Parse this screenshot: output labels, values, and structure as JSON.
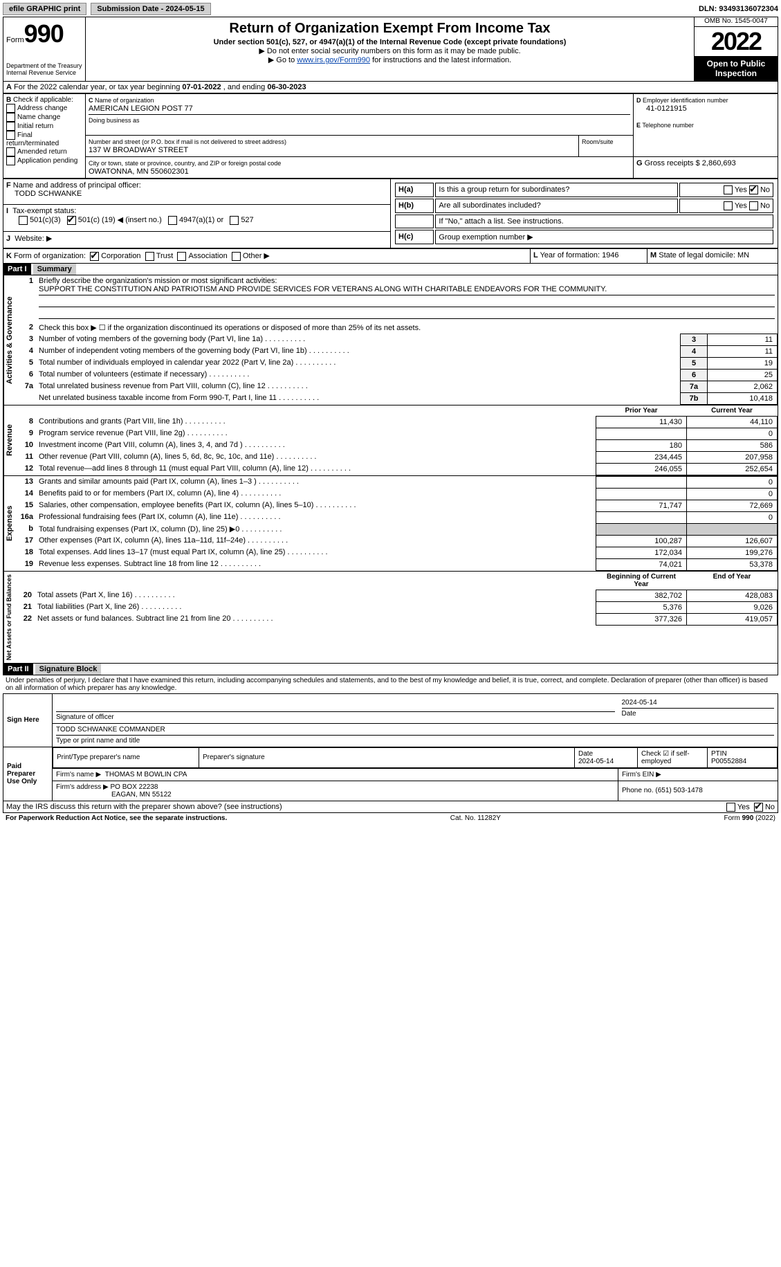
{
  "topbar": {
    "efile": "efile GRAPHIC print",
    "submission_label": "Submission Date - 2024-05-15",
    "dln_label": "DLN: 93493136072304"
  },
  "header": {
    "form_word": "Form",
    "form_num": "990",
    "dept": "Department of the Treasury",
    "irs": "Internal Revenue Service",
    "title": "Return of Organization Exempt From Income Tax",
    "subtitle": "Under section 501(c), 527, or 4947(a)(1) of the Internal Revenue Code (except private foundations)",
    "note1": "Do not enter social security numbers on this form as it may be made public.",
    "note2_pre": "Go to ",
    "note2_link": "www.irs.gov/Form990",
    "note2_post": " for instructions and the latest information.",
    "omb": "OMB No. 1545-0047",
    "year": "2022",
    "open": "Open to Public Inspection"
  },
  "periodA": {
    "text_pre": "For the 2022 calendar year, or tax year beginning ",
    "begin": "07-01-2022",
    "mid": " , and ending ",
    "end": "06-30-2023"
  },
  "boxB": {
    "label": "Check if applicable:",
    "opts": [
      "Address change",
      "Name change",
      "Initial return",
      "Final return/terminated",
      "Amended return",
      "Application pending"
    ]
  },
  "boxC": {
    "name_label": "Name of organization",
    "name": "AMERICAN LEGION POST 77",
    "dba_label": "Doing business as",
    "addr_label": "Number and street (or P.O. box if mail is not delivered to street address)",
    "room_label": "Room/suite",
    "addr": "137 W BROADWAY STREET",
    "city_label": "City or town, state or province, country, and ZIP or foreign postal code",
    "city": "OWATONNA, MN  550602301"
  },
  "boxD": {
    "label": "Employer identification number",
    "val": "41-0121915"
  },
  "boxE": {
    "label": "Telephone number",
    "val": ""
  },
  "boxG": {
    "label": "Gross receipts $",
    "val": "2,860,693"
  },
  "boxF": {
    "label": "Name and address of principal officer:",
    "name": "TODD SCHWANKE"
  },
  "boxH": {
    "a_label": "Is this a group return for subordinates?",
    "b_label": "Are all subordinates included?",
    "yes": "Yes",
    "no": "No",
    "note": "If \"No,\" attach a list. See instructions.",
    "c_label": "Group exemption number ▶"
  },
  "boxI": {
    "label": "Tax-exempt status:",
    "c3": "501(c)(3)",
    "c_pre": "501(c) (",
    "c_num": "19",
    "c_post": ") ◀ (insert no.)",
    "a4947": "4947(a)(1) or",
    "s527": "527"
  },
  "boxJ": {
    "label": "Website: ▶"
  },
  "boxK": {
    "label": "Form of organization:",
    "corp": "Corporation",
    "trust": "Trust",
    "assoc": "Association",
    "other": "Other ▶"
  },
  "boxL": {
    "label": "Year of formation:",
    "val": "1946"
  },
  "boxM": {
    "label": "State of legal domicile:",
    "val": "MN"
  },
  "part1": {
    "header": "Part I",
    "title": "Summary",
    "line1_label": "Briefly describe the organization's mission or most significant activities:",
    "line1_text": "SUPPORT THE CONSTITUTION AND PATRIOTISM AND PROVIDE SERVICES FOR VETERANS ALONG WITH CHARITABLE ENDEAVORS FOR THE COMMUNITY.",
    "line2": "Check this box ▶ ☐ if the organization discontinued its operations or disposed of more than 25% of its net assets.",
    "rows_ag": [
      {
        "n": "3",
        "t": "Number of voting members of the governing body (Part VI, line 1a)",
        "b": "3",
        "v": "11"
      },
      {
        "n": "4",
        "t": "Number of independent voting members of the governing body (Part VI, line 1b)",
        "b": "4",
        "v": "11"
      },
      {
        "n": "5",
        "t": "Total number of individuals employed in calendar year 2022 (Part V, line 2a)",
        "b": "5",
        "v": "19"
      },
      {
        "n": "6",
        "t": "Total number of volunteers (estimate if necessary)",
        "b": "6",
        "v": "25"
      },
      {
        "n": "7a",
        "t": "Total unrelated business revenue from Part VIII, column (C), line 12",
        "b": "7a",
        "v": "2,062"
      },
      {
        "n": "",
        "t": "Net unrelated business taxable income from Form 990-T, Part I, line 11",
        "b": "7b",
        "v": "10,418"
      }
    ],
    "prior_label": "Prior Year",
    "current_label": "Current Year",
    "rev": [
      {
        "n": "8",
        "t": "Contributions and grants (Part VIII, line 1h)",
        "p": "11,430",
        "c": "44,110"
      },
      {
        "n": "9",
        "t": "Program service revenue (Part VIII, line 2g)",
        "p": "",
        "c": "0"
      },
      {
        "n": "10",
        "t": "Investment income (Part VIII, column (A), lines 3, 4, and 7d )",
        "p": "180",
        "c": "586"
      },
      {
        "n": "11",
        "t": "Other revenue (Part VIII, column (A), lines 5, 6d, 8c, 9c, 10c, and 11e)",
        "p": "234,445",
        "c": "207,958"
      },
      {
        "n": "12",
        "t": "Total revenue—add lines 8 through 11 (must equal Part VIII, column (A), line 12)",
        "p": "246,055",
        "c": "252,654"
      }
    ],
    "exp": [
      {
        "n": "13",
        "t": "Grants and similar amounts paid (Part IX, column (A), lines 1–3 )",
        "p": "",
        "c": "0"
      },
      {
        "n": "14",
        "t": "Benefits paid to or for members (Part IX, column (A), line 4)",
        "p": "",
        "c": "0"
      },
      {
        "n": "15",
        "t": "Salaries, other compensation, employee benefits (Part IX, column (A), lines 5–10)",
        "p": "71,747",
        "c": "72,669"
      },
      {
        "n": "16a",
        "t": "Professional fundraising fees (Part IX, column (A), line 11e)",
        "p": "",
        "c": "0"
      },
      {
        "n": "b",
        "t": "Total fundraising expenses (Part IX, column (D), line 25) ▶0",
        "p": "__GREY__",
        "c": "__GREY__"
      },
      {
        "n": "17",
        "t": "Other expenses (Part IX, column (A), lines 11a–11d, 11f–24e)",
        "p": "100,287",
        "c": "126,607"
      },
      {
        "n": "18",
        "t": "Total expenses. Add lines 13–17 (must equal Part IX, column (A), line 25)",
        "p": "172,034",
        "c": "199,276"
      },
      {
        "n": "19",
        "t": "Revenue less expenses. Subtract line 18 from line 12",
        "p": "74,021",
        "c": "53,378"
      }
    ],
    "beg_label": "Beginning of Current Year",
    "end_label": "End of Year",
    "net": [
      {
        "n": "20",
        "t": "Total assets (Part X, line 16)",
        "p": "382,702",
        "c": "428,083"
      },
      {
        "n": "21",
        "t": "Total liabilities (Part X, line 26)",
        "p": "5,376",
        "c": "9,026"
      },
      {
        "n": "22",
        "t": "Net assets or fund balances. Subtract line 21 from line 20",
        "p": "377,326",
        "c": "419,057"
      }
    ],
    "vlabels": {
      "ag": "Activities & Governance",
      "rev": "Revenue",
      "exp": "Expenses",
      "net": "Net Assets or Fund Balances"
    }
  },
  "part2": {
    "header": "Part II",
    "title": "Signature Block",
    "penalty": "Under penalties of perjury, I declare that I have examined this return, including accompanying schedules and statements, and to the best of my knowledge and belief, it is true, correct, and complete. Declaration of preparer (other than officer) is based on all information of which preparer has any knowledge.",
    "sign_here": "Sign Here",
    "sig_officer": "Signature of officer",
    "sig_date": "2024-05-14",
    "date_label": "Date",
    "officer_name": "TODD SCHWANKE  COMMANDER",
    "officer_sub": "Type or print name and title",
    "paid": "Paid Preparer Use Only",
    "prep_name_label": "Print/Type preparer's name",
    "prep_sig_label": "Preparer's signature",
    "prep_date": "2024-05-14",
    "check_self": "Check ☑ if self-employed",
    "ptin_label": "PTIN",
    "ptin": "P00552884",
    "firm_name_label": "Firm's name    ▶",
    "firm_name": "THOMAS M BOWLIN CPA",
    "firm_ein_label": "Firm's EIN ▶",
    "firm_addr_label": "Firm's address ▶",
    "firm_addr1": "PO BOX 22238",
    "firm_addr2": "EAGAN, MN  55122",
    "phone_label": "Phone no.",
    "phone": "(651) 503-1478",
    "discuss": "May the IRS discuss this return with the preparer shown above? (see instructions)"
  },
  "footer": {
    "left": "For Paperwork Reduction Act Notice, see the separate instructions.",
    "mid": "Cat. No. 11282Y",
    "right": "Form 990 (2022)"
  }
}
